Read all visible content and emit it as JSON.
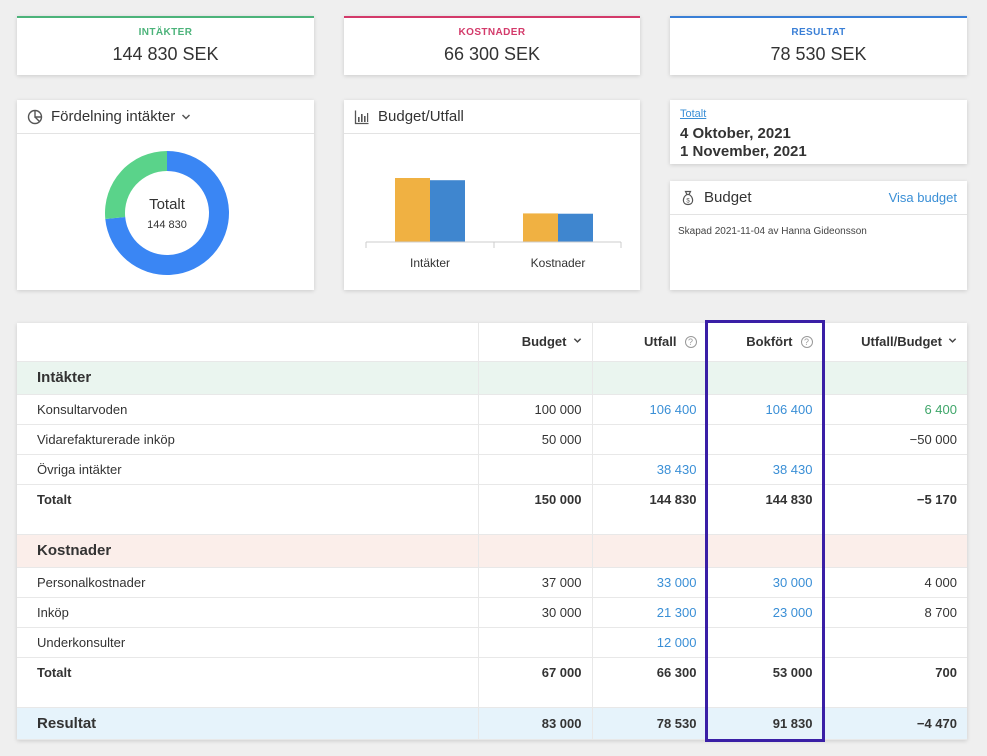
{
  "kpis": [
    {
      "label": "INTÄKTER",
      "value": "144 830 SEK",
      "color": "#4cb37a"
    },
    {
      "label": "KOSTNADER",
      "value": "66 300 SEK",
      "color": "#d33a6a"
    },
    {
      "label": "RESULTAT",
      "value": "78 530 SEK",
      "color": "#3a7fd6"
    }
  ],
  "donut_panel": {
    "title": "Fördelning intäkter",
    "center_label": "Totalt",
    "center_value": "144 830",
    "segments": [
      {
        "value": 106400,
        "color": "#3a86f4"
      },
      {
        "value": 38430,
        "color": "#5ad38a"
      }
    ]
  },
  "bar_panel": {
    "title": "Budget/Utfall",
    "colors": {
      "budget": "#f0b142",
      "utfall": "#3f86cf"
    }
  },
  "chart_data": {
    "type": "bar",
    "categories": [
      "Intäkter",
      "Kostnader"
    ],
    "series": [
      {
        "values": [
          150000,
          67000
        ]
      },
      {
        "values": [
          144830,
          66300
        ]
      }
    ]
  },
  "period": {
    "link": "Totalt",
    "from": "4 Oktober, 2021",
    "to": "1 November, 2021"
  },
  "budget_card": {
    "title": "Budget",
    "link": "Visa budget",
    "created": "Skapad 2021-11-04 av Hanna Gideonsson"
  },
  "table": {
    "headers": {
      "budget": "Budget",
      "utfall": "Utfall",
      "bokfort": "Bokfört",
      "ratio": "Utfall/Budget"
    },
    "income": {
      "title": "Intäkter",
      "rows": [
        {
          "label": "Konsultarvoden",
          "budget": "100 000",
          "utfall": "106 400",
          "bokfort": "106 400",
          "diff": "6 400"
        },
        {
          "label": "Vidarefakturerade inköp",
          "budget": "50 000",
          "utfall": "",
          "bokfort": "",
          "diff": "−50 000"
        },
        {
          "label": "Övriga intäkter",
          "budget": "",
          "utfall": "38 430",
          "bokfort": "38 430",
          "diff": ""
        }
      ],
      "total": {
        "label": "Totalt",
        "budget": "150 000",
        "utfall": "144 830",
        "bokfort": "144 830",
        "diff": "−5 170"
      }
    },
    "costs": {
      "title": "Kostnader",
      "rows": [
        {
          "label": "Personalkostnader",
          "budget": "37 000",
          "utfall": "33 000",
          "bokfort": "30 000",
          "diff": "4 000"
        },
        {
          "label": "Inköp",
          "budget": "30 000",
          "utfall": "21 300",
          "bokfort": "23 000",
          "diff": "8 700"
        },
        {
          "label": "Underkonsulter",
          "budget": "",
          "utfall": "12 000",
          "bokfort": "",
          "diff": ""
        }
      ],
      "total": {
        "label": "Totalt",
        "budget": "67 000",
        "utfall": "66 300",
        "bokfort": "53 000",
        "diff": "700"
      }
    },
    "result": {
      "label": "Resultat",
      "budget": "83 000",
      "utfall": "78 530",
      "bokfort": "91 830",
      "diff": "−4 470"
    }
  }
}
